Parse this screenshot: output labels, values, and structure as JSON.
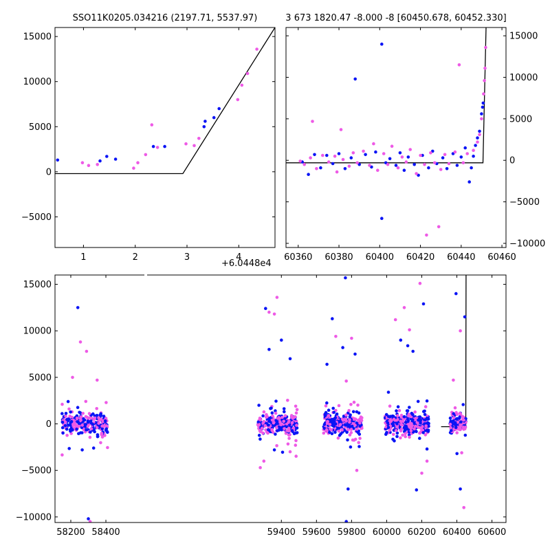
{
  "colors": {
    "blue": "#0a14f5",
    "pink": "#ee5ae6",
    "line": "#000000",
    "axis": "#000000",
    "bg": "#ffffff"
  },
  "chart_data": [
    {
      "type": "scatter",
      "title": "SSO11K0205.034216 (2197.71, 5537.97)",
      "offset_label": "+6.0448e4",
      "xlim": [
        0.45,
        4.7
      ],
      "ylim": [
        -8400,
        16000
      ],
      "xticks": [
        1,
        2,
        3,
        4
      ],
      "yticks": [
        -5000,
        0,
        5000,
        10000,
        15000
      ],
      "ytick_labels": [
        "−5000",
        "0",
        "5000",
        "10000",
        "15000"
      ],
      "model_line": {
        "x": [
          0.45,
          2.92,
          4.7
        ],
        "y": [
          -200,
          -200,
          16000
        ]
      },
      "series": [
        {
          "color": "blue",
          "points": [
            [
              0.5,
              1300
            ],
            [
              1.32,
              1200
            ],
            [
              1.45,
              1700
            ],
            [
              1.62,
              1400
            ],
            [
              2.35,
              2800
            ],
            [
              2.57,
              2800
            ],
            [
              3.33,
              5000
            ],
            [
              3.35,
              5600
            ],
            [
              3.52,
              6000
            ],
            [
              3.62,
              7000
            ]
          ]
        },
        {
          "color": "pink",
          "points": [
            [
              0.98,
              1000
            ],
            [
              1.1,
              700
            ],
            [
              1.27,
              800
            ],
            [
              1.97,
              400
            ],
            [
              2.05,
              1000
            ],
            [
              2.2,
              1900
            ],
            [
              2.32,
              5200
            ],
            [
              2.43,
              2700
            ],
            [
              2.98,
              3100
            ],
            [
              3.14,
              2900
            ],
            [
              3.23,
              3700
            ],
            [
              3.98,
              8000
            ],
            [
              4.06,
              9600
            ],
            [
              4.17,
              10900
            ],
            [
              4.35,
              13600
            ]
          ]
        }
      ]
    },
    {
      "type": "scatter",
      "title": "3 673 1820.47 -8.000 -8 [60450.678, 60452.330]",
      "xlim": [
        60354,
        60462
      ],
      "ylim": [
        -10500,
        16000
      ],
      "xticks": [
        60360,
        60380,
        60400,
        60420,
        60440,
        60460
      ],
      "yticks": [
        -10000,
        -5000,
        0,
        5000,
        10000,
        15000
      ],
      "ytick_labels": [
        "−10000",
        "−5000",
        "0",
        "5000",
        "10000",
        "15000"
      ],
      "model_line": {
        "x": [
          60354,
          60450.7,
          60452.2
        ],
        "y": [
          -300,
          -300,
          16000
        ]
      },
      "series": [
        {
          "color": "blue",
          "points": [
            [
              60362,
              -200
            ],
            [
              60365,
              -1700
            ],
            [
              60368,
              700
            ],
            [
              60371,
              -900
            ],
            [
              60374,
              600
            ],
            [
              60377,
              -400
            ],
            [
              60380,
              800
            ],
            [
              60383,
              -1000
            ],
            [
              60386,
              300
            ],
            [
              60388,
              9800
            ],
            [
              60390,
              -500
            ],
            [
              60393,
              700
            ],
            [
              60396,
              -800
            ],
            [
              60398,
              1000
            ],
            [
              60401,
              14000
            ],
            [
              60401,
              -7000
            ],
            [
              60403,
              -300
            ],
            [
              60405,
              200
            ],
            [
              60408,
              -600
            ],
            [
              60410,
              900
            ],
            [
              60412,
              -1200
            ],
            [
              60414,
              400
            ],
            [
              60417,
              -500
            ],
            [
              60419,
              -1800
            ],
            [
              60421,
              600
            ],
            [
              60424,
              -900
            ],
            [
              60426,
              1100
            ],
            [
              60428,
              -400
            ],
            [
              60431,
              300
            ],
            [
              60433,
              -1000
            ],
            [
              60436,
              800
            ],
            [
              60438,
              -600
            ],
            [
              60440,
              400
            ],
            [
              60442,
              1500
            ],
            [
              60444,
              -2600
            ],
            [
              60445,
              -900
            ],
            [
              60446,
              500
            ],
            [
              60447,
              1800
            ],
            [
              60448,
              2700
            ],
            [
              60449,
              3500
            ],
            [
              60450,
              5600
            ],
            [
              60450.5,
              6400
            ],
            [
              60450.8,
              6900
            ]
          ]
        },
        {
          "color": "pink",
          "points": [
            [
              60361,
              -100
            ],
            [
              60363,
              -500
            ],
            [
              60366,
              300
            ],
            [
              60367,
              4700
            ],
            [
              60369,
              -1000
            ],
            [
              60372,
              600
            ],
            [
              60375,
              -200
            ],
            [
              60378,
              500
            ],
            [
              60379,
              -1400
            ],
            [
              60381,
              3700
            ],
            [
              60382,
              100
            ],
            [
              60385,
              -700
            ],
            [
              60387,
              900
            ],
            [
              60389,
              -300
            ],
            [
              60392,
              1100
            ],
            [
              60395,
              -600
            ],
            [
              60397,
              2000
            ],
            [
              60399,
              -1200
            ],
            [
              60402,
              800
            ],
            [
              60404,
              -500
            ],
            [
              60406,
              1700
            ],
            [
              60409,
              -900
            ],
            [
              60411,
              400
            ],
            [
              60413,
              -200
            ],
            [
              60415,
              1300
            ],
            [
              60418,
              -1600
            ],
            [
              60420,
              600
            ],
            [
              60422,
              -500
            ],
            [
              60423,
              -9000
            ],
            [
              60425,
              900
            ],
            [
              60427,
              -300
            ],
            [
              60429,
              -8000
            ],
            [
              60430,
              -1100
            ],
            [
              60432,
              700
            ],
            [
              60434,
              -400
            ],
            [
              60437,
              1000
            ],
            [
              60439,
              11500
            ],
            [
              60441,
              -300
            ],
            [
              60443,
              800
            ],
            [
              60446,
              1200
            ],
            [
              60448,
              2200
            ],
            [
              60449,
              3100
            ],
            [
              60450,
              5000
            ],
            [
              60451,
              8000
            ],
            [
              60451.4,
              9600
            ],
            [
              60451.7,
              11100
            ],
            [
              60452,
              13600
            ]
          ]
        }
      ]
    },
    {
      "type": "scatter",
      "title": "",
      "xlim": [
        58110,
        60680
      ],
      "ylim": [
        -10600,
        16000
      ],
      "xticks": [
        58200,
        58400,
        59400,
        59600,
        59800,
        60000,
        60200,
        60400,
        60600
      ],
      "yticks": [
        -10000,
        -5000,
        0,
        5000,
        10000,
        15000
      ],
      "ytick_labels": [
        "−10000",
        "−5000",
        "0",
        "5000",
        "10000",
        "15000"
      ],
      "model_line": {
        "x": [
          60310,
          60450.7,
          60452.3
        ],
        "y": [
          -300,
          -300,
          16000
        ]
      },
      "seasons": [
        [
          58150,
          58410
        ],
        [
          59265,
          59490
        ],
        [
          59640,
          59860
        ],
        [
          59990,
          60240
        ],
        [
          60360,
          60452
        ]
      ],
      "outliers": {
        "blue": [
          [
            58185,
            2400
          ],
          [
            58240,
            12500
          ],
          [
            58265,
            -2800
          ],
          [
            58300,
            -10200
          ],
          [
            58330,
            -2600
          ],
          [
            59310,
            12400
          ],
          [
            59330,
            8000
          ],
          [
            59360,
            -2800
          ],
          [
            59400,
            9000
          ],
          [
            59450,
            7000
          ],
          [
            59660,
            6400
          ],
          [
            59690,
            11300
          ],
          [
            59750,
            8200
          ],
          [
            59765,
            15700
          ],
          [
            59780,
            -7000
          ],
          [
            59770,
            -10500
          ],
          [
            59820,
            7500
          ],
          [
            60010,
            3400
          ],
          [
            60080,
            9000
          ],
          [
            60120,
            8400
          ],
          [
            60150,
            7800
          ],
          [
            60170,
            -7100
          ],
          [
            60210,
            12900
          ],
          [
            60230,
            -2700
          ],
          [
            60395,
            14000
          ],
          [
            60420,
            -7000
          ],
          [
            60445,
            11500
          ]
        ],
        "pink": [
          [
            58210,
            5000
          ],
          [
            58255,
            8800
          ],
          [
            58290,
            7800
          ],
          [
            58310,
            -10500
          ],
          [
            58350,
            4700
          ],
          [
            59280,
            -4700
          ],
          [
            59330,
            12000
          ],
          [
            59360,
            11800
          ],
          [
            59375,
            13600
          ],
          [
            59300,
            -4000
          ],
          [
            59450,
            -3000
          ],
          [
            59710,
            9400
          ],
          [
            59770,
            4600
          ],
          [
            59800,
            9200
          ],
          [
            59830,
            -5000
          ],
          [
            60050,
            11200
          ],
          [
            60100,
            12500
          ],
          [
            60130,
            10100
          ],
          [
            60190,
            15100
          ],
          [
            60200,
            -5300
          ],
          [
            60230,
            -4000
          ],
          [
            60380,
            4700
          ],
          [
            60420,
            10000
          ],
          [
            60440,
            -9000
          ]
        ]
      }
    }
  ]
}
